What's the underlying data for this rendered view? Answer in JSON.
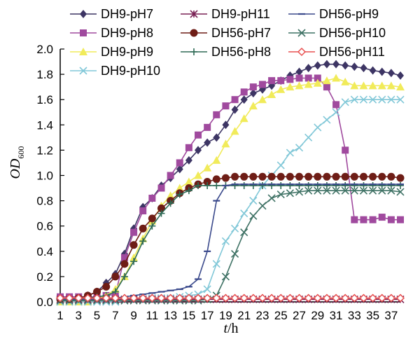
{
  "chart_data": {
    "type": "line",
    "xlabel": {
      "var": "t",
      "unit": "/h"
    },
    "ylabel": {
      "base": "OD",
      "sub": "600"
    },
    "xlim": [
      1,
      38
    ],
    "ylim": [
      0,
      2.0
    ],
    "x_ticks": [
      1,
      3,
      5,
      7,
      9,
      11,
      13,
      15,
      17,
      19,
      21,
      23,
      25,
      27,
      29,
      31,
      33,
      35,
      37
    ],
    "x_tick_labels": [
      "1",
      "3",
      "5",
      "7",
      "9",
      "11",
      "13",
      "15",
      "17",
      "19",
      "21",
      "23",
      "25",
      "27",
      "29",
      "31",
      "33",
      "35",
      "37"
    ],
    "y_ticks": [
      0,
      0.2,
      0.4,
      0.6,
      0.8,
      1.0,
      1.2,
      1.4,
      1.6,
      1.8,
      2.0
    ],
    "y_tick_labels": [
      "0.0",
      "0.2",
      "0.4",
      "0.6",
      "0.8",
      "1.0",
      "1.2",
      "1.4",
      "1.6",
      "1.8",
      "2.0"
    ],
    "grid": false,
    "legend": "top",
    "x": [
      1,
      2,
      3,
      4,
      5,
      6,
      7,
      8,
      9,
      10,
      11,
      12,
      13,
      14,
      15,
      16,
      17,
      18,
      19,
      20,
      21,
      22,
      23,
      24,
      25,
      26,
      27,
      28,
      29,
      30,
      31,
      32,
      33,
      34,
      35,
      36,
      37,
      38
    ],
    "series": [
      {
        "name": "DH9-pH7",
        "color": "#3d3564",
        "marker": "diamond",
        "values": [
          0.02,
          0.02,
          0.03,
          0.05,
          0.08,
          0.15,
          0.22,
          0.38,
          0.58,
          0.75,
          0.82,
          0.92,
          0.98,
          1.05,
          1.12,
          1.2,
          1.26,
          1.3,
          1.4,
          1.52,
          1.6,
          1.65,
          1.68,
          1.71,
          1.75,
          1.79,
          1.82,
          1.85,
          1.87,
          1.88,
          1.88,
          1.87,
          1.86,
          1.85,
          1.83,
          1.82,
          1.81,
          1.79
        ]
      },
      {
        "name": "DH9-pH8",
        "color": "#a04a9e",
        "marker": "square",
        "values": [
          0.04,
          0.04,
          0.04,
          0.04,
          0.04,
          0.05,
          0.06,
          0.35,
          0.55,
          0.72,
          0.82,
          0.9,
          1.0,
          1.1,
          1.22,
          1.32,
          1.38,
          1.48,
          1.55,
          1.6,
          1.66,
          1.7,
          1.72,
          1.75,
          1.75,
          1.76,
          1.77,
          1.77,
          1.77,
          1.7,
          1.56,
          1.2,
          0.65,
          0.65,
          0.65,
          0.67,
          0.65,
          0.65
        ]
      },
      {
        "name": "DH9-pH9",
        "color": "#f1eb5a",
        "marker": "triangle",
        "values": [
          0.0,
          0.0,
          0.0,
          0.0,
          0.02,
          0.05,
          0.1,
          0.2,
          0.35,
          0.5,
          0.64,
          0.76,
          0.84,
          0.9,
          0.95,
          1.0,
          1.06,
          1.12,
          1.25,
          1.35,
          1.45,
          1.55,
          1.6,
          1.64,
          1.68,
          1.7,
          1.71,
          1.72,
          1.73,
          1.75,
          1.77,
          1.74,
          1.71,
          1.71,
          1.71,
          1.71,
          1.71,
          1.7
        ]
      },
      {
        "name": "DH9-pH10",
        "color": "#82c8d8",
        "marker": "x",
        "values": [
          0.0,
          0.0,
          0.0,
          0.0,
          0.0,
          0.0,
          0.0,
          0.01,
          0.02,
          0.02,
          0.03,
          0.03,
          0.03,
          0.04,
          0.05,
          0.06,
          0.1,
          0.3,
          0.48,
          0.58,
          0.7,
          0.8,
          0.92,
          1.0,
          1.08,
          1.18,
          1.22,
          1.3,
          1.38,
          1.44,
          1.5,
          1.58,
          1.6,
          1.6,
          1.6,
          1.6,
          1.6,
          1.6
        ]
      },
      {
        "name": "DH9-pH11",
        "color": "#7a2255",
        "marker": "star",
        "values": [
          0.02,
          0.02,
          0.02,
          0.02,
          0.02,
          0.02,
          0.02,
          0.02,
          0.02,
          0.02,
          0.02,
          0.02,
          0.02,
          0.02,
          0.02,
          0.02,
          0.02,
          0.02,
          0.02,
          0.02,
          0.02,
          0.02,
          0.02,
          0.02,
          0.02,
          0.02,
          0.02,
          0.02,
          0.02,
          0.02,
          0.02,
          0.02,
          0.02,
          0.02,
          0.02,
          0.02,
          0.02,
          0.02
        ]
      },
      {
        "name": "DH56-pH7",
        "color": "#6e1d16",
        "marker": "circle",
        "values": [
          0.02,
          0.02,
          0.03,
          0.05,
          0.08,
          0.12,
          0.2,
          0.3,
          0.45,
          0.58,
          0.66,
          0.74,
          0.8,
          0.86,
          0.9,
          0.93,
          0.95,
          0.97,
          0.98,
          0.99,
          0.99,
          0.99,
          0.99,
          0.99,
          0.99,
          0.99,
          0.99,
          0.99,
          0.99,
          0.99,
          0.99,
          0.99,
          0.99,
          0.99,
          0.99,
          0.99,
          0.99,
          0.98
        ]
      },
      {
        "name": "DH56-pH8",
        "color": "#2e6a55",
        "marker": "plus",
        "values": [
          0.02,
          0.02,
          0.02,
          0.03,
          0.04,
          0.05,
          0.08,
          0.2,
          0.32,
          0.48,
          0.6,
          0.7,
          0.78,
          0.85,
          0.88,
          0.92,
          0.92,
          0.92,
          0.92,
          0.92,
          0.92,
          0.92,
          0.92,
          0.92,
          0.92,
          0.92,
          0.92,
          0.92,
          0.92,
          0.92,
          0.92,
          0.92,
          0.92,
          0.92,
          0.92,
          0.92,
          0.92,
          0.92
        ]
      },
      {
        "name": "DH56-pH9",
        "color": "#3b4a8c",
        "marker": "dash",
        "values": [
          0.02,
          0.02,
          0.02,
          0.02,
          0.02,
          0.03,
          0.03,
          0.04,
          0.05,
          0.06,
          0.07,
          0.08,
          0.09,
          0.1,
          0.12,
          0.18,
          0.4,
          0.8,
          0.92,
          0.93,
          0.93,
          0.93,
          0.93,
          0.93,
          0.93,
          0.93,
          0.93,
          0.93,
          0.93,
          0.93,
          0.93,
          0.93,
          0.93,
          0.93,
          0.93,
          0.93,
          0.93,
          0.93
        ]
      },
      {
        "name": "DH56-pH10",
        "color": "#3f7265",
        "marker": "x",
        "values": [
          0.01,
          0.01,
          0.01,
          0.01,
          0.01,
          0.01,
          0.01,
          0.01,
          0.01,
          0.01,
          0.01,
          0.01,
          0.01,
          0.01,
          0.01,
          0.01,
          0.02,
          0.05,
          0.2,
          0.38,
          0.55,
          0.68,
          0.76,
          0.82,
          0.85,
          0.86,
          0.87,
          0.88,
          0.88,
          0.88,
          0.88,
          0.88,
          0.88,
          0.88,
          0.88,
          0.88,
          0.88,
          0.87
        ]
      },
      {
        "name": "DH56-pH11",
        "color": "#e85050",
        "marker": "diamond-open",
        "values": [
          0.03,
          0.03,
          0.03,
          0.03,
          0.03,
          0.03,
          0.03,
          0.03,
          0.03,
          0.03,
          0.03,
          0.03,
          0.03,
          0.03,
          0.03,
          0.03,
          0.03,
          0.03,
          0.03,
          0.03,
          0.03,
          0.03,
          0.03,
          0.03,
          0.03,
          0.03,
          0.03,
          0.03,
          0.03,
          0.03,
          0.03,
          0.03,
          0.03,
          0.03,
          0.03,
          0.03,
          0.03,
          0.03
        ]
      }
    ]
  }
}
